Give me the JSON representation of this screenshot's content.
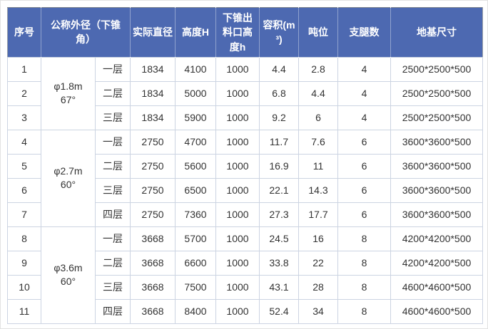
{
  "colors": {
    "header_bg": "#4d69b1",
    "header_text": "#ffffff",
    "body_text": "#333333",
    "grid_line": "#ccd4e2",
    "outer_border": "#99a0a8"
  },
  "chart_data": {
    "type": "table",
    "title": "",
    "columns": [
      "序号",
      "公称外径（下锥角）",
      "实际直径",
      "高度H",
      "下锥出料口高度h",
      "容积(m³)",
      "吨位",
      "支腿数",
      "地基尺寸"
    ],
    "groups": [
      {
        "diameter_label": "φ1.8m",
        "angle_label": "67°",
        "row_span": 3
      },
      {
        "diameter_label": "φ2.7m",
        "angle_label": "60°",
        "row_span": 4
      },
      {
        "diameter_label": "φ3.6m",
        "angle_label": "60°",
        "row_span": 4
      }
    ],
    "rows": [
      {
        "seq": "1",
        "layer": "一层",
        "actual_diameter": "1834",
        "height": "4100",
        "outlet_height": "1000",
        "volume": "4.4",
        "tonnage": "2.8",
        "legs": "4",
        "foundation": "2500*2500*500"
      },
      {
        "seq": "2",
        "layer": "二层",
        "actual_diameter": "1834",
        "height": "5000",
        "outlet_height": "1000",
        "volume": "6.8",
        "tonnage": "4.4",
        "legs": "4",
        "foundation": "2500*2500*500"
      },
      {
        "seq": "3",
        "layer": "三层",
        "actual_diameter": "1834",
        "height": "5900",
        "outlet_height": "1000",
        "volume": "9.2",
        "tonnage": "6",
        "legs": "4",
        "foundation": "2500*2500*500"
      },
      {
        "seq": "4",
        "layer": "一层",
        "actual_diameter": "2750",
        "height": "4700",
        "outlet_height": "1000",
        "volume": "11.7",
        "tonnage": "7.6",
        "legs": "6",
        "foundation": "3600*3600*500"
      },
      {
        "seq": "5",
        "layer": "二层",
        "actual_diameter": "2750",
        "height": "5600",
        "outlet_height": "1000",
        "volume": "16.9",
        "tonnage": "11",
        "legs": "6",
        "foundation": "3600*3600*500"
      },
      {
        "seq": "6",
        "layer": "三层",
        "actual_diameter": "2750",
        "height": "6500",
        "outlet_height": "1000",
        "volume": "22.1",
        "tonnage": "14.3",
        "legs": "6",
        "foundation": "3600*3600*500"
      },
      {
        "seq": "7",
        "layer": "四层",
        "actual_diameter": "2750",
        "height": "7360",
        "outlet_height": "1000",
        "volume": "27.3",
        "tonnage": "17.7",
        "legs": "6",
        "foundation": "3600*3600*500"
      },
      {
        "seq": "8",
        "layer": "一层",
        "actual_diameter": "3668",
        "height": "5700",
        "outlet_height": "1000",
        "volume": "24.5",
        "tonnage": "16",
        "legs": "8",
        "foundation": "4200*4200*500"
      },
      {
        "seq": "9",
        "layer": "二层",
        "actual_diameter": "3668",
        "height": "6600",
        "outlet_height": "1000",
        "volume": "33.8",
        "tonnage": "22",
        "legs": "8",
        "foundation": "4200*4200*500"
      },
      {
        "seq": "10",
        "layer": "三层",
        "actual_diameter": "3668",
        "height": "7500",
        "outlet_height": "1000",
        "volume": "43.1",
        "tonnage": "28",
        "legs": "8",
        "foundation": "4600*4600*500"
      },
      {
        "seq": "11",
        "layer": "四层",
        "actual_diameter": "3668",
        "height": "8400",
        "outlet_height": "1000",
        "volume": "52.4",
        "tonnage": "34",
        "legs": "8",
        "foundation": "4600*4600*500"
      }
    ]
  }
}
